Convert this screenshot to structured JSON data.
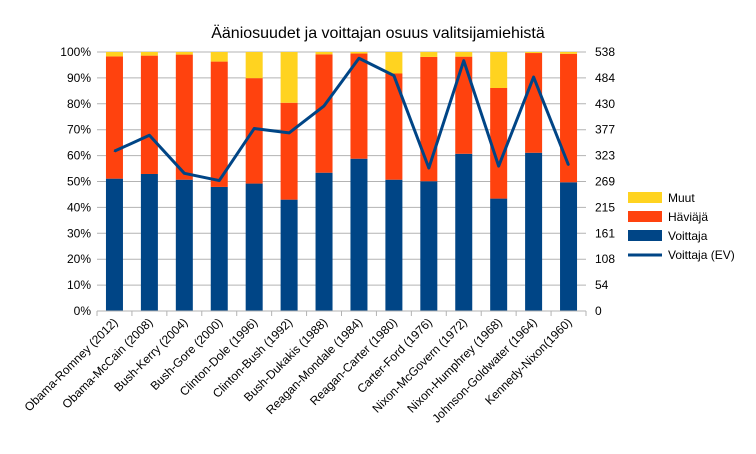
{
  "chart_data": {
    "type": "bar",
    "stacked": true,
    "title": "Ääniosuudet ja voittajan osuus valitsijamiehistä",
    "categories": [
      "Obama-Romney (2012)",
      "Obama-McCain (2008)",
      "Bush-Kerry (2004)",
      "Bush-Gore (2000)",
      "Clinton-Dole (1996)",
      "Clinton-Bush (1992)",
      "Bush-Dukakis (1988)",
      "Reagan-Mondale (1984)",
      "Reagan-Carter (1980)",
      "Carter-Ford (1976)",
      "Nixon-McGovern (1972)",
      "Nixon-Humphrey (1968)",
      "Johnson-Goldwater (1964)",
      "Kennedy-Nixon(1960)"
    ],
    "series": [
      {
        "name": "Voittaja",
        "color": "#004586",
        "values": [
          51.1,
          52.9,
          50.7,
          47.9,
          49.2,
          43.0,
          53.4,
          58.8,
          50.7,
          50.1,
          60.7,
          43.4,
          61.1,
          49.7
        ]
      },
      {
        "name": "Häviäjä",
        "color": "#ff420e",
        "values": [
          47.2,
          45.7,
          48.3,
          48.4,
          40.7,
          37.4,
          45.7,
          40.6,
          41.0,
          48.0,
          37.5,
          42.7,
          38.5,
          49.6
        ]
      },
      {
        "name": "Muut",
        "color": "#ffd320",
        "values": [
          1.7,
          1.4,
          1.0,
          3.7,
          10.1,
          19.6,
          0.9,
          0.6,
          8.3,
          1.9,
          1.8,
          13.9,
          0.4,
          0.7
        ]
      }
    ],
    "line_series": {
      "name": "Voittaja (EV)",
      "color": "#004586",
      "axis": "right",
      "values": [
        332,
        365,
        286,
        271,
        379,
        370,
        426,
        525,
        489,
        297,
        520,
        301,
        486,
        303
      ]
    },
    "ylim": [
      0,
      100
    ],
    "y2lim": [
      0,
      538
    ],
    "yticks": [
      "0%",
      "10%",
      "20%",
      "30%",
      "40%",
      "50%",
      "60%",
      "70%",
      "80%",
      "90%",
      "100%"
    ],
    "y2ticks": [
      "0",
      "54",
      "108",
      "161",
      "215",
      "269",
      "323",
      "377",
      "430",
      "484",
      "538"
    ],
    "legend": [
      "Muut",
      "Häviäjä",
      "Voittaja",
      "Voittaja (EV)"
    ],
    "legend_position": "right",
    "grid": true
  }
}
